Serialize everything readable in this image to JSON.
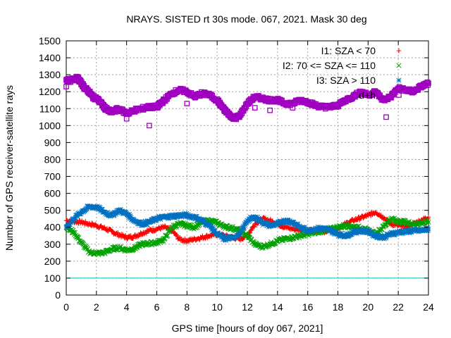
{
  "chart_data": {
    "type": "scatter",
    "title": "NRAYS. SISTED rt 30s mode. 067, 2021. Mask 30 deg",
    "xlabel": "GPS time [hours of doy 067, 2021]",
    "ylabel": "Number of GPS receiver-satellite rays",
    "xlim": [
      0,
      24
    ],
    "ylim": [
      0,
      1500
    ],
    "xticks": [
      0,
      2,
      4,
      6,
      8,
      10,
      12,
      14,
      16,
      18,
      20,
      22,
      24
    ],
    "yticks": [
      0,
      100,
      200,
      300,
      400,
      500,
      600,
      700,
      800,
      900,
      1000,
      1100,
      1200,
      1300,
      1400,
      1500
    ],
    "grid": true,
    "legend_position": "top-right",
    "reference_line": {
      "y": 100,
      "color": "#00c0c0"
    },
    "series": [
      {
        "name": "I1: SZA < 70",
        "marker": "plus",
        "color": "#ff0000",
        "x": [
          0,
          0.5,
          1,
          1.5,
          2,
          2.5,
          3,
          3.5,
          4,
          4.5,
          5,
          5.5,
          6,
          6.5,
          7,
          7.5,
          8,
          8.5,
          9,
          9.5,
          10,
          10.5,
          11,
          11.5,
          12,
          12.5,
          13,
          13.5,
          14,
          14.5,
          15,
          15.5,
          16,
          16.5,
          17,
          17.5,
          18,
          18.5,
          19,
          19.5,
          20,
          20.5,
          21,
          21.5,
          22,
          22.5,
          23,
          23.5,
          24
        ],
        "y": [
          440,
          435,
          430,
          420,
          410,
          395,
          375,
          355,
          340,
          345,
          365,
          380,
          390,
          400,
          380,
          330,
          320,
          330,
          340,
          350,
          360,
          350,
          340,
          330,
          350,
          420,
          450,
          440,
          420,
          400,
          390,
          385,
          380,
          375,
          375,
          380,
          395,
          420,
          440,
          455,
          470,
          490,
          460,
          420,
          410,
          400,
          420,
          440,
          460
        ]
      },
      {
        "name": "I2: 70 <= SZA <= 110",
        "marker": "cross",
        "color": "#00a000",
        "x": [
          0,
          0.5,
          1,
          1.5,
          2,
          2.5,
          3,
          3.5,
          4,
          4.5,
          5,
          5.5,
          6,
          6.5,
          7,
          7.5,
          8,
          8.5,
          9,
          9.5,
          10,
          10.5,
          11,
          11.5,
          12,
          12.5,
          13,
          13.5,
          14,
          14.5,
          15,
          15.5,
          16,
          16.5,
          17,
          17.5,
          18,
          18.5,
          19,
          19.5,
          20,
          20.5,
          21,
          21.5,
          22,
          22.5,
          23,
          23.5,
          24
        ],
        "y": [
          400,
          370,
          310,
          255,
          245,
          250,
          270,
          280,
          265,
          275,
          300,
          305,
          310,
          330,
          400,
          420,
          410,
          400,
          430,
          440,
          425,
          405,
          395,
          380,
          350,
          300,
          285,
          300,
          320,
          330,
          340,
          350,
          360,
          370,
          380,
          390,
          400,
          410,
          405,
          395,
          380,
          360,
          400,
          450,
          435,
          430,
          420,
          425,
          430
        ]
      },
      {
        "name": "I3: SZA > 110",
        "marker": "star",
        "color": "#0070c0",
        "x": [
          0,
          0.5,
          1,
          1.5,
          2,
          2.5,
          3,
          3.5,
          4,
          4.5,
          5,
          5.5,
          6,
          6.5,
          7,
          7.5,
          8,
          8.5,
          9,
          9.5,
          10,
          10.5,
          11,
          11.5,
          12,
          12.5,
          13,
          13.5,
          14,
          14.5,
          15,
          15.5,
          16,
          16.5,
          17,
          17.5,
          18,
          18.5,
          19,
          19.5,
          20,
          20.5,
          21,
          21.5,
          22,
          22.5,
          23,
          23.5,
          24
        ],
        "y": [
          400,
          450,
          490,
          520,
          520,
          490,
          470,
          500,
          480,
          440,
          420,
          430,
          450,
          460,
          465,
          470,
          470,
          460,
          440,
          410,
          360,
          330,
          340,
          360,
          440,
          460,
          430,
          410,
          420,
          440,
          430,
          400,
          380,
          390,
          395,
          380,
          360,
          350,
          370,
          380,
          375,
          350,
          340,
          360,
          370,
          375,
          380,
          380,
          390
        ]
      },
      {
        "name": "d+h",
        "marker": "square",
        "color": "#a000c0",
        "x": [
          0,
          0.25,
          0.5,
          0.75,
          1,
          1.25,
          1.5,
          1.75,
          2,
          2.25,
          2.5,
          2.75,
          3,
          3.5,
          4,
          4.5,
          5,
          5.5,
          6,
          6.25,
          6.5,
          7,
          7.5,
          8,
          8.5,
          9,
          9.5,
          10,
          10.25,
          10.5,
          10.75,
          11,
          11.25,
          11.5,
          12,
          12.5,
          13,
          13.5,
          14,
          14.5,
          15,
          15.5,
          16,
          16.5,
          17,
          17.5,
          18,
          18.5,
          19,
          19.5,
          20,
          20.5,
          21,
          21.5,
          22,
          22.5,
          23,
          23.5,
          24
        ],
        "y": [
          1270,
          1265,
          1275,
          1280,
          1250,
          1220,
          1200,
          1170,
          1160,
          1140,
          1110,
          1090,
          1080,
          1100,
          1070,
          1090,
          1100,
          1110,
          1110,
          1130,
          1150,
          1190,
          1210,
          1200,
          1170,
          1190,
          1180,
          1150,
          1120,
          1090,
          1070,
          1050,
          1045,
          1060,
          1130,
          1170,
          1160,
          1150,
          1150,
          1130,
          1130,
          1150,
          1140,
          1120,
          1110,
          1110,
          1120,
          1150,
          1170,
          1200,
          1180,
          1200,
          1150,
          1170,
          1220,
          1210,
          1200,
          1230,
          1250
        ]
      }
    ],
    "outliers": {
      "series": "d+h",
      "x": [
        0,
        4,
        5.5,
        8,
        12.5,
        13.5,
        15,
        21.2
      ],
      "y": [
        1230,
        1040,
        1000,
        1130,
        1105,
        1090,
        1105,
        1050
      ]
    }
  }
}
